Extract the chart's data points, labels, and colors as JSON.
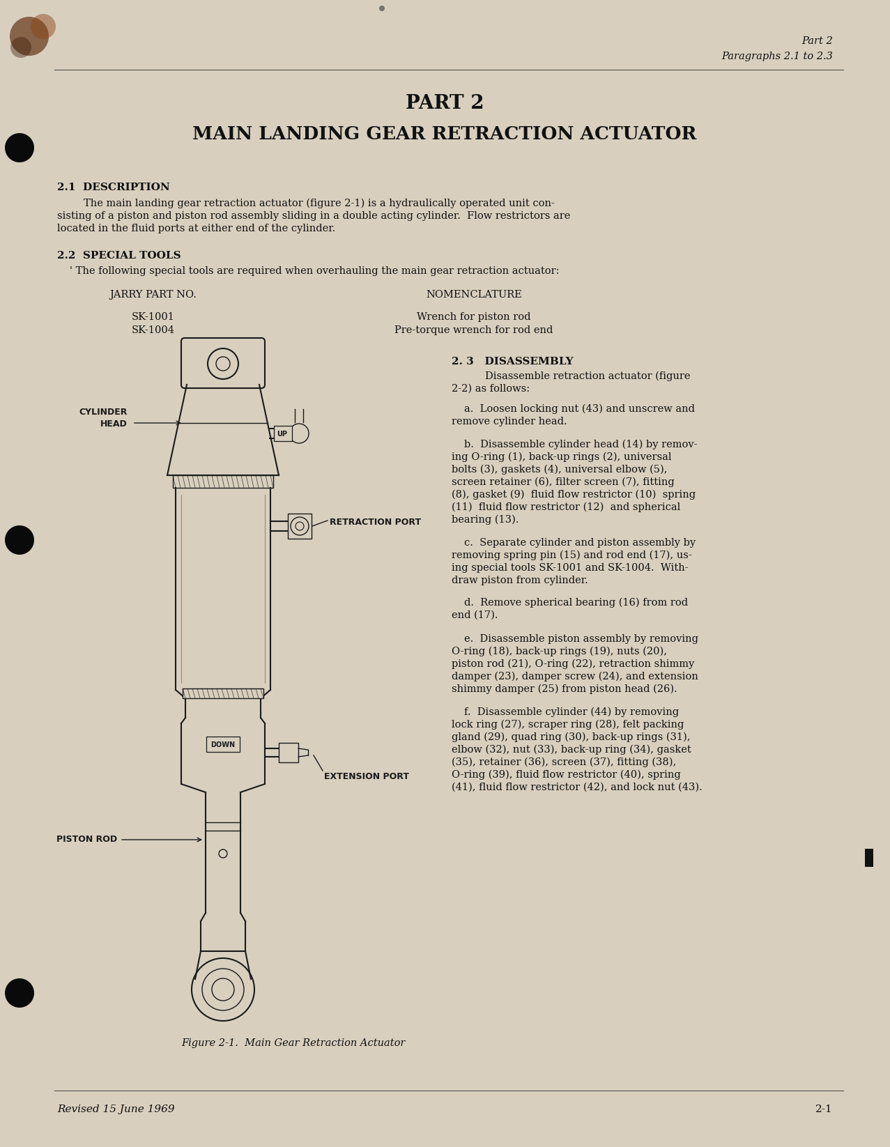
{
  "bg_color": "#d8cfbe",
  "text_color": "#111111",
  "header_right_line1": "Part 2",
  "header_right_line2": "Paragraphs 2.1 to 2.3",
  "part_title": "PART 2",
  "main_title": "MAIN LANDING GEAR RETRACTION ACTUATOR",
  "section_21_head": "2.1  DESCRIPTION",
  "section_21_body1": "The main landing gear retraction actuator (figure 2-1) is a hydraulically operated unit con-",
  "section_21_body2": "sisting of a piston and piston rod assembly sliding in a double acting cylinder.  Flow restrictors are",
  "section_21_body3": "located in the fluid ports at either end of the cylinder.",
  "section_22_head": "2.2  SPECIAL TOOLS",
  "section_22_intro": "' The following special tools are required when overhauling the main gear retraction actuator:",
  "col_left_head": "JARRY PART NO.",
  "col_right_head": "NOMENCLATURE",
  "tool1_left": "SK-1001",
  "tool1_right": "Wrench for piston rod",
  "tool2_left": "SK-1004",
  "tool2_right": "Pre-torque wrench for rod end",
  "section_23_head": "2. 3   DISASSEMBLY",
  "section_23_intro1": "Disassemble retraction actuator (figure",
  "section_23_intro2": "2-2) as follows:",
  "para_a1": "a.  Loosen locking nut (43) and unscrew and",
  "para_a2": "remove cylinder head.",
  "para_b1": "b.  Disassemble cylinder head (14) by remov-",
  "para_b2": "ing O-ring (1), back-up rings (2), universal",
  "para_b3": "bolts (3), gaskets (4), universal elbow (5),",
  "para_b4": "screen retainer (6), filter screen (7), fitting",
  "para_b5": "(8), gasket (9)  fluid flow restrictor (10)  spring",
  "para_b6": "(11)  fluid flow restrictor (12)  and spherical",
  "para_b7": "bearing (13).",
  "para_c1": "c.  Separate cylinder and piston assembly by",
  "para_c2": "removing spring pin (15) and rod end (17), us-",
  "para_c3": "ing special tools SK-1001 and SK-1004.  With-",
  "para_c4": "draw piston from cylinder.",
  "para_d1": "d.  Remove spherical bearing (16) from rod",
  "para_d2": "end (17).",
  "para_e1": "e.  Disassemble piston assembly by removing",
  "para_e2": "O-ring (18), back-up rings (19), nuts (20),",
  "para_e3": "piston rod (21), O-ring (22), retraction shimmy",
  "para_e4": "damper (23), damper screw (24), and extension",
  "para_e5": "shimmy damper (25) from piston head (26).",
  "para_f1": "f.  Disassemble cylinder (44) by removing",
  "para_f2": "lock ring (27), scraper ring (28), felt packing",
  "para_f3": "gland (29), quad ring (30), back-up rings (31),",
  "para_f4": "elbow (32), nut (33), back-up ring (34), gasket",
  "para_f5": "(35), retainer (36), screen (37), fitting (38),",
  "para_f6": "O-ring (39), fluid flow restrictor (40), spring",
  "para_f7": "(41), fluid flow restrictor (42), and lock nut (43).",
  "fig_caption": "Figure 2-1.  Main Gear Retraction Actuator",
  "footer_left": "Revised 15 June 1969",
  "footer_right": "2-1",
  "label_cylinder_head": "CYLINDER\nHEAD",
  "label_retraction_port": "RETRACTION PORT",
  "label_piston_rod": "PISTON ROD",
  "label_extension_port": "EXTENSION PORT",
  "label_up": "UP",
  "label_down": "DOWN"
}
